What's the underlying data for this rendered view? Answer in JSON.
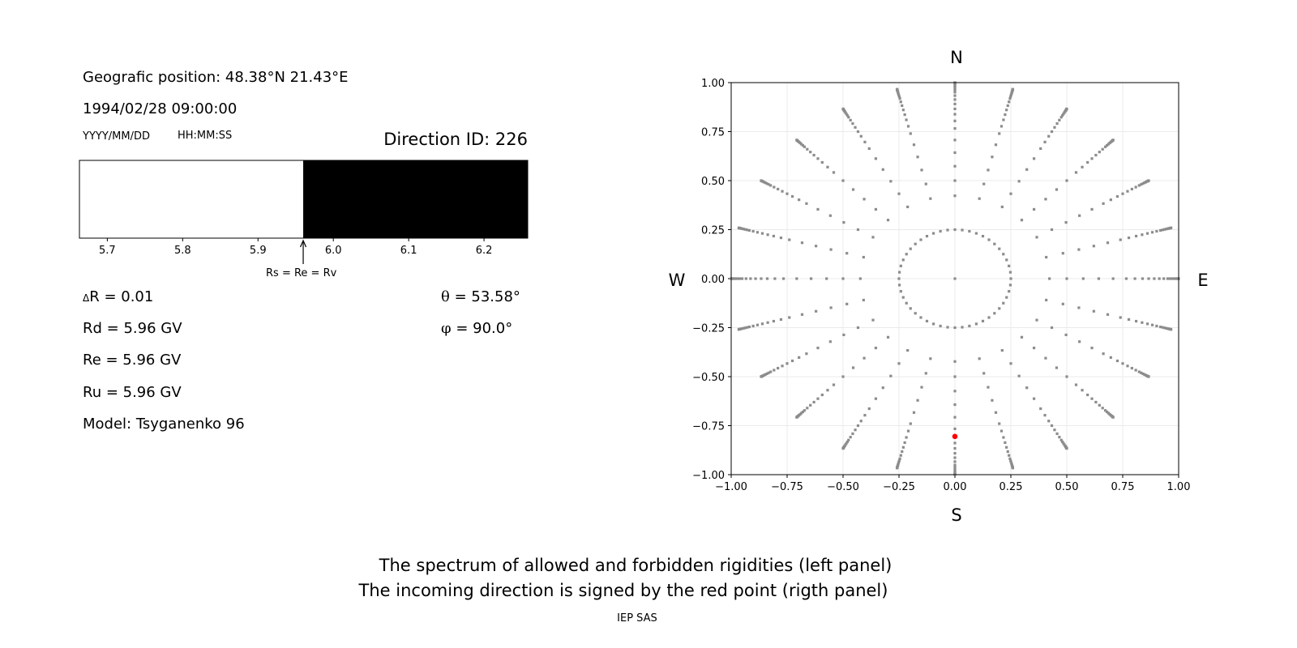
{
  "left_panel": {
    "position_text": "Geografic position: 48.38°N 21.43°E",
    "datetime_text": "1994/02/28 09:00:00",
    "date_format_label": "YYYY/MM/DD",
    "time_format_label": "HH:MM:SS",
    "direction_id_text": "Direction ID: 226",
    "arrow_label": "Rs = Re = Rv",
    "delta_r_symbol": "Δ",
    "delta_r_text": "R = 0.01",
    "rd_text": "Rd = 5.96 GV",
    "re_text": "Re = 5.96 GV",
    "ru_text": "Ru = 5.96 GV",
    "model_text": "Model: Tsyganenko 96",
    "theta_symbol": "θ",
    "theta_text": " = 53.58°",
    "phi_symbol": "φ",
    "phi_text": " = 90.0°"
  },
  "footer": {
    "line1": "The spectrum of allowed and forbidden rigidities (left panel)",
    "line2": "The incoming direction is signed by the red point (rigth panel)",
    "credit": "IEP SAS"
  },
  "chart_data": [
    {
      "type": "bar",
      "description_kind": "rigidity spectrum",
      "xlim": [
        5.663,
        6.258
      ],
      "xticks": [
        "5.7",
        "5.8",
        "5.9",
        "6.0",
        "6.1",
        "6.2"
      ],
      "segments": [
        {
          "from": 5.663,
          "to": 5.96,
          "state": "allowed",
          "color": "#ffffff"
        },
        {
          "from": 5.96,
          "to": 6.258,
          "state": "forbidden",
          "color": "#000000"
        }
      ],
      "marker_value": 5.96,
      "grid": false
    },
    {
      "type": "scatter",
      "xlim": [
        -1.0,
        1.0
      ],
      "ylim": [
        -1.0,
        1.0
      ],
      "xticks": [
        "−1.00",
        "−0.75",
        "−0.50",
        "−0.25",
        "0.00",
        "0.25",
        "0.50",
        "0.75",
        "1.00"
      ],
      "yticks": [
        "−1.00",
        "−0.75",
        "−0.50",
        "−0.25",
        "0.00",
        "0.25",
        "0.50",
        "0.75",
        "1.00"
      ],
      "compass": {
        "top": "N",
        "bottom": "S",
        "left": "W",
        "right": "E"
      },
      "grid": true,
      "grid_points": {
        "color": "#8c8c8c",
        "inner_ring": {
          "zenith_deg": 14.48,
          "count": 48
        },
        "ray_azimuths_step_deg": 15,
        "ray_zenith_deg": [
          25,
          30,
          35,
          40,
          45,
          50,
          53.58,
          57,
          60,
          63,
          66,
          69,
          72,
          74,
          76,
          78,
          80,
          82,
          84,
          86,
          88,
          90
        ],
        "center": [
          0,
          0
        ]
      },
      "highlight_point": {
        "x": 0.0,
        "y": -0.805,
        "color": "#ff0000"
      }
    }
  ]
}
